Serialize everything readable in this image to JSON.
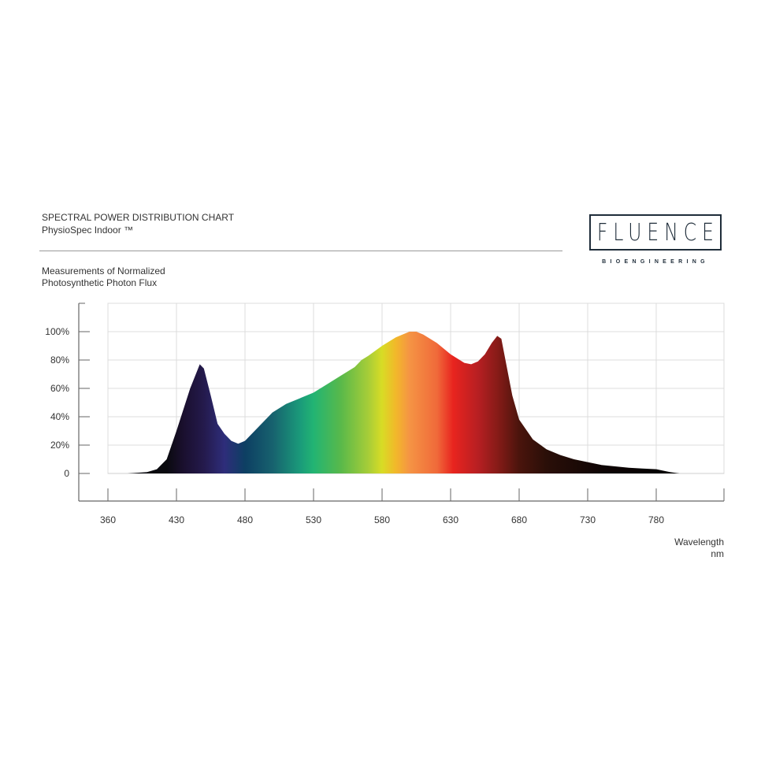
{
  "header": {
    "title": "SPECTRAL POWER DISTRIBUTION CHART",
    "product": "PhysioSpec Indoor ™"
  },
  "logo": {
    "word": "FLUENCE",
    "tagline": "BIOENGINEERING",
    "color": "#1f2d3a"
  },
  "chart_data": {
    "type": "area",
    "title": "SPECTRAL POWER DISTRIBUTION CHART",
    "ylabel_lines": [
      "Measurements of Normalized",
      "Photosynthetic Photon Flux"
    ],
    "xlabel_lines": [
      "Wavelength",
      "nm"
    ],
    "x_ticks": [
      360,
      430,
      480,
      530,
      580,
      630,
      680,
      730,
      780
    ],
    "y_ticks": [
      {
        "v": 0,
        "label": "0"
      },
      {
        "v": 20,
        "label": "20%"
      },
      {
        "v": 40,
        "label": "40%"
      },
      {
        "v": 60,
        "label": "60%"
      },
      {
        "v": 80,
        "label": "80%"
      },
      {
        "v": 100,
        "label": "100%"
      }
    ],
    "xlim": [
      360,
      830
    ],
    "ylim": [
      0,
      120
    ],
    "grid": true,
    "x": [
      380,
      400,
      410,
      420,
      430,
      440,
      447,
      450,
      455,
      460,
      465,
      470,
      475,
      480,
      490,
      500,
      510,
      520,
      530,
      540,
      550,
      560,
      565,
      570,
      580,
      590,
      600,
      605,
      610,
      620,
      630,
      640,
      645,
      650,
      655,
      660,
      664,
      667,
      670,
      675,
      680,
      690,
      700,
      710,
      720,
      730,
      740,
      750,
      760,
      770,
      780,
      790,
      797
    ],
    "y": [
      0,
      1,
      3,
      10,
      30,
      60,
      77,
      74,
      55,
      35,
      28,
      23,
      21,
      23,
      33,
      43,
      49,
      53,
      57,
      63,
      69,
      75,
      80,
      83,
      90,
      96,
      100,
      100,
      98,
      92,
      84,
      78,
      77,
      79,
      84,
      92,
      97,
      95,
      80,
      55,
      38,
      24,
      17,
      13,
      10,
      8,
      6,
      5,
      4,
      3.5,
      3,
      1,
      0
    ],
    "spectrum_colors": [
      {
        "nm": 420,
        "color": "#0a0a0f"
      },
      {
        "nm": 435,
        "color": "#1a0f2e"
      },
      {
        "nm": 450,
        "color": "#241a4c"
      },
      {
        "nm": 465,
        "color": "#2e2d7a"
      },
      {
        "nm": 480,
        "color": "#0d3f63"
      },
      {
        "nm": 500,
        "color": "#17616e"
      },
      {
        "nm": 520,
        "color": "#1a9a7a"
      },
      {
        "nm": 530,
        "color": "#22b473"
      },
      {
        "nm": 550,
        "color": "#59b94a"
      },
      {
        "nm": 570,
        "color": "#a7cd38"
      },
      {
        "nm": 580,
        "color": "#d8dc25"
      },
      {
        "nm": 590,
        "color": "#f2b82a"
      },
      {
        "nm": 600,
        "color": "#f59444"
      },
      {
        "nm": 620,
        "color": "#f06a3a"
      },
      {
        "nm": 632,
        "color": "#e8241f"
      },
      {
        "nm": 650,
        "color": "#b71f22"
      },
      {
        "nm": 665,
        "color": "#841b17"
      },
      {
        "nm": 680,
        "color": "#4a140c"
      },
      {
        "nm": 700,
        "color": "#2a0f08"
      },
      {
        "nm": 740,
        "color": "#0f0505"
      },
      {
        "nm": 800,
        "color": "#000000"
      }
    ]
  }
}
